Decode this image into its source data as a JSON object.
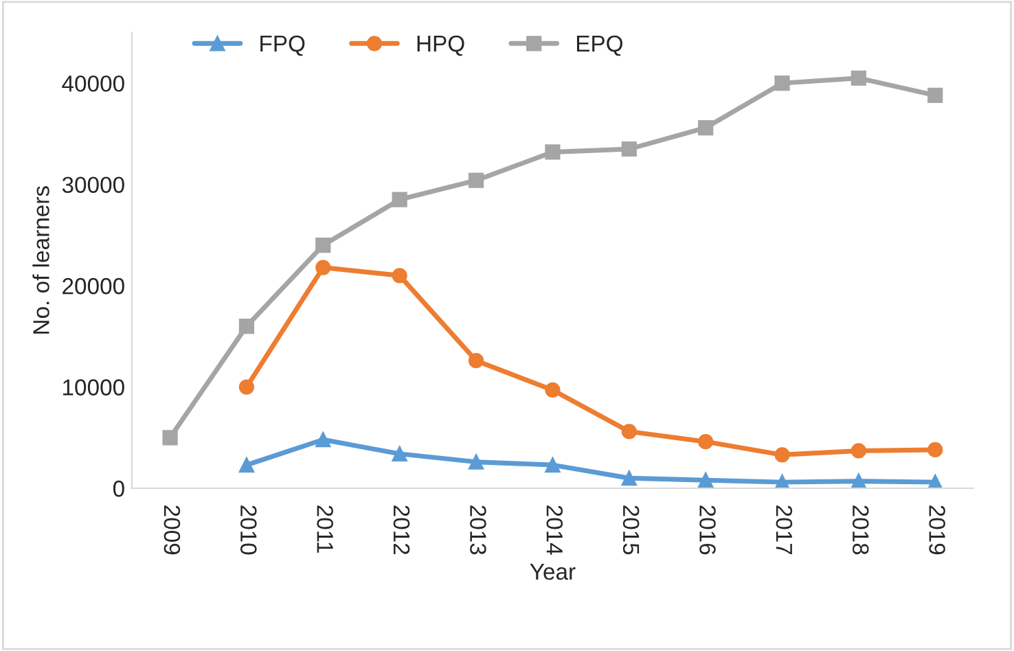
{
  "chart_data": {
    "type": "line",
    "xlabel": "Year",
    "ylabel": "No. of learners",
    "categories": [
      "2009",
      "2010",
      "2011",
      "2012",
      "2013",
      "2014",
      "2015",
      "2016",
      "2017",
      "2018",
      "2019"
    ],
    "ylim": [
      0,
      45000
    ],
    "yticks": [
      0,
      10000,
      20000,
      30000,
      40000
    ],
    "grid": false,
    "legend": "top left",
    "series": [
      {
        "name": "FPQ",
        "color": "#5b9bd5",
        "marker": "triangle",
        "values": [
          null,
          2300,
          4800,
          3400,
          2600,
          2300,
          1000,
          800,
          600,
          700,
          600
        ]
      },
      {
        "name": "HPQ",
        "color": "#ed7d31",
        "marker": "circle",
        "values": [
          null,
          10000,
          21800,
          21000,
          12600,
          9700,
          5600,
          4600,
          3300,
          3700,
          3800
        ]
      },
      {
        "name": "EPQ",
        "color": "#a5a5a5",
        "marker": "square",
        "values": [
          5000,
          16000,
          24000,
          28500,
          30400,
          33200,
          33500,
          35600,
          40000,
          40500,
          38800
        ]
      }
    ]
  }
}
